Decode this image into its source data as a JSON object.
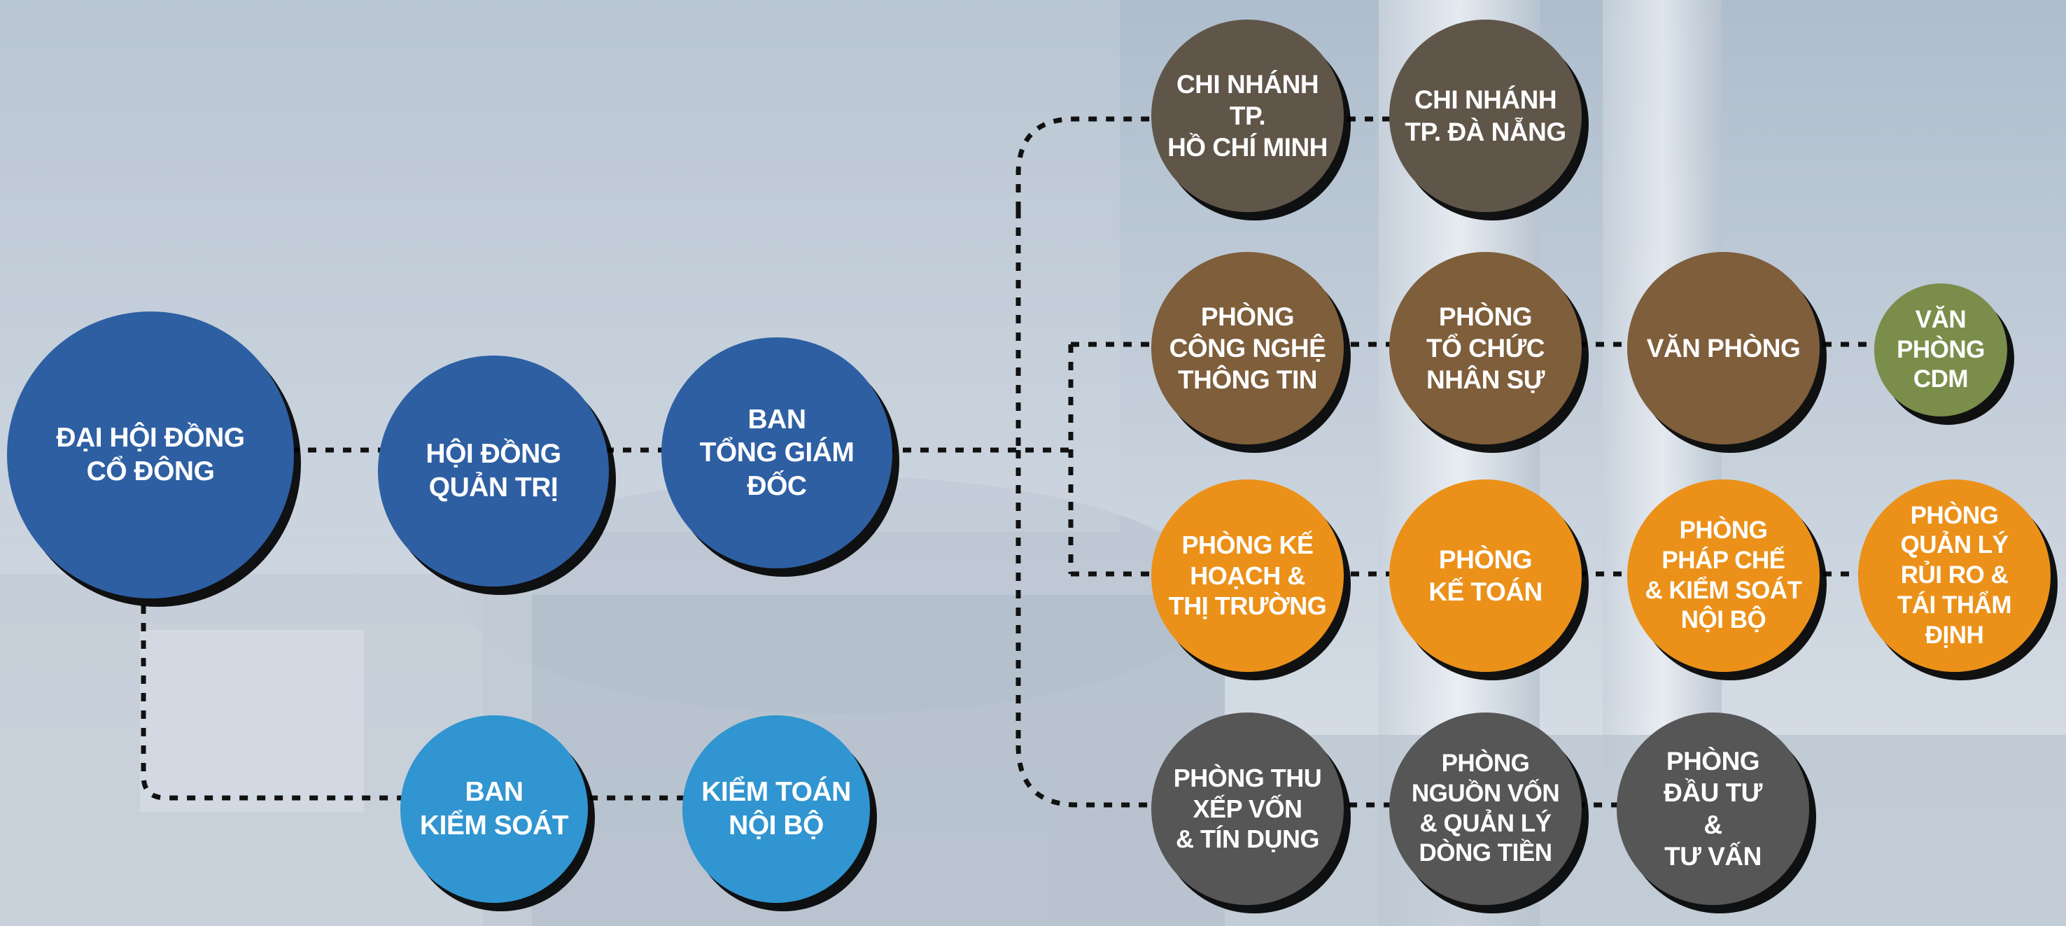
{
  "colors": {
    "navy": "#2e5fa3",
    "sky": "#3095d0",
    "brown": "#7e5e3b",
    "taupe": "#5f5649",
    "orange": "#eb9119",
    "olive": "#7a8d4a",
    "charcoal": "#565656",
    "line": "#111111"
  },
  "nodes": {
    "dai_hoi_dong": "ĐẠI HỘI ĐỒNG\nCỔ ĐÔNG",
    "hoi_dong_quan_tri": "HỘI ĐỒNG\nQUẢN TRỊ",
    "ban_tong_giam_doc": "BAN\nTỔNG GIÁM ĐỐC",
    "ban_kiem_soat": "BAN\nKIỂM  SOÁT",
    "kiem_toan_noi_bo": "KIỂM TOÁN\nNỘI BỘ",
    "cn_hcm": "CHI NHÁNH\nTP.\nHỒ CHÍ MINH",
    "cn_danang": "CHI NHÁNH\nTP. ĐÀ NẴNG",
    "phong_cntt": "PHÒNG\nCÔNG NGHỆ\nTHÔNG TIN",
    "phong_tcns": "PHÒNG\nTỔ CHỨC\nNHÂN SỰ",
    "van_phong": "VĂN PHÒNG",
    "van_phong_cdm": "VĂN\nPHÒNG\nCDM",
    "phong_khtt": "PHÒNG KẾ\nHOẠCH &\nTHỊ TRƯỜNG",
    "phong_ke_toan": "PHÒNG\nKẾ TOÁN",
    "phong_phap_che": "PHÒNG\nPHÁP CHẾ\n& KIỂM SOÁT\nNỘI BỘ",
    "phong_qlrr": "PHÒNG\nQUẢN LÝ\nRỦI RO &\nTÁI THẨM\nĐỊNH",
    "phong_thu_xep_von": "PHÒNG THU\nXẾP VỐN\n& TÍN DỤNG",
    "phong_nguon_von": "PHÒNG\nNGUỒN VỐN\n& QUẢN LÝ\nDÒNG TIỀN",
    "phong_dau_tu": "PHÒNG\nĐẦU TƯ\n&\nTƯ VẤN"
  }
}
